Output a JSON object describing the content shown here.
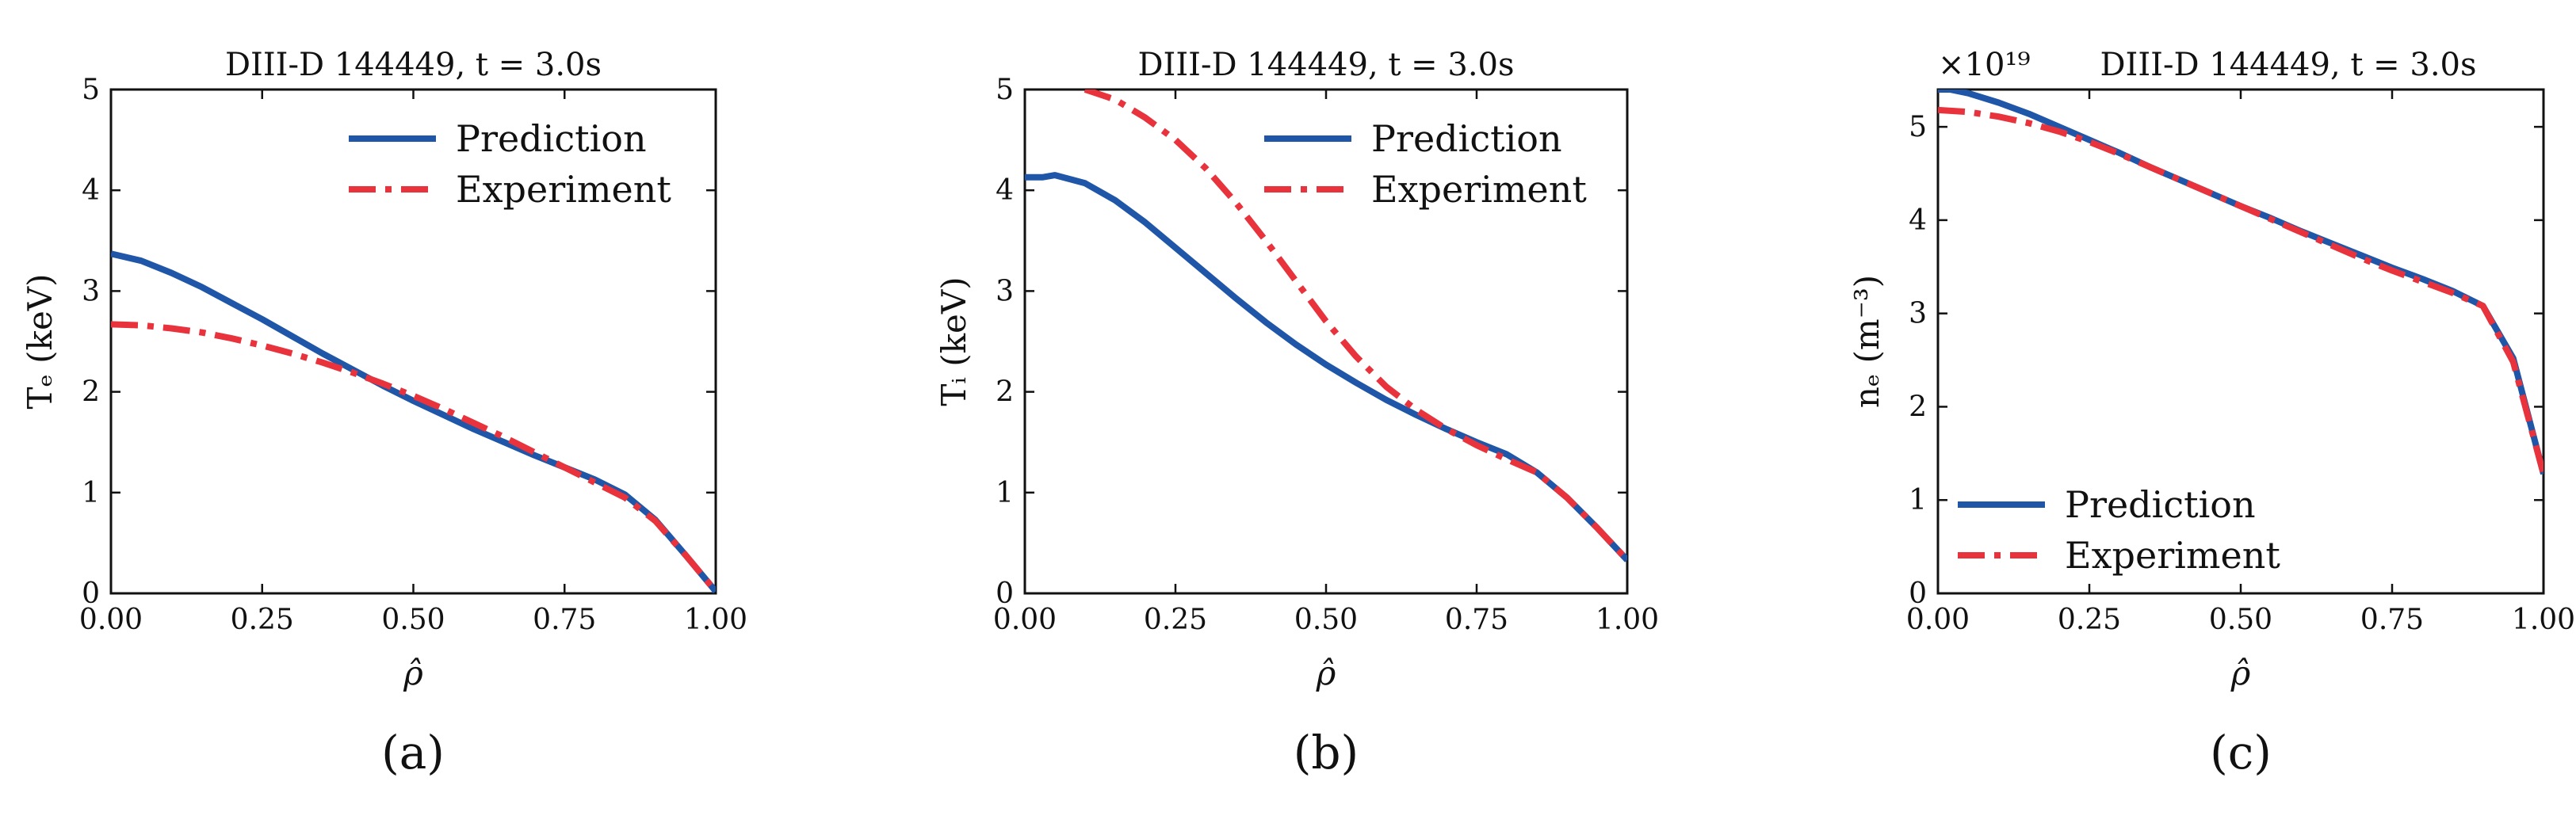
{
  "colors": {
    "prediction": "#1f56a8",
    "experiment": "#e8323c",
    "axis": "#111111"
  },
  "chart_data": [
    {
      "type": "line",
      "panel": "a",
      "caption": "(a)",
      "title": "DIII-D 144449, t = 3.0s",
      "xlabel": "ρ̂",
      "ylabel": "Tₑ (keV)",
      "multiplier_label": "",
      "xlim": [
        0,
        1
      ],
      "ylim": [
        0,
        5
      ],
      "x_ticks": [
        "0.00",
        "0.25",
        "0.50",
        "0.75",
        "1.00"
      ],
      "y_ticks": [
        "0",
        "1",
        "2",
        "3",
        "4",
        "5"
      ],
      "legend_position": "top-right",
      "series": [
        {
          "name": "Prediction",
          "style": "solid",
          "x": [
            0,
            0.05,
            0.1,
            0.15,
            0.2,
            0.25,
            0.3,
            0.35,
            0.4,
            0.45,
            0.5,
            0.55,
            0.6,
            0.65,
            0.7,
            0.75,
            0.8,
            0.85,
            0.9,
            0.95,
            1.0
          ],
          "y": [
            3.37,
            3.3,
            3.18,
            3.04,
            2.88,
            2.72,
            2.55,
            2.38,
            2.22,
            2.06,
            1.91,
            1.77,
            1.63,
            1.5,
            1.37,
            1.25,
            1.13,
            0.98,
            0.73,
            0.38,
            0.02
          ]
        },
        {
          "name": "Experiment",
          "style": "dashdot",
          "x": [
            0,
            0.05,
            0.1,
            0.15,
            0.2,
            0.25,
            0.3,
            0.35,
            0.4,
            0.45,
            0.5,
            0.55,
            0.6,
            0.65,
            0.7,
            0.75,
            0.8,
            0.85,
            0.9,
            0.95,
            1.0
          ],
          "y": [
            2.67,
            2.66,
            2.63,
            2.59,
            2.53,
            2.46,
            2.38,
            2.29,
            2.19,
            2.08,
            1.96,
            1.83,
            1.69,
            1.55,
            1.4,
            1.25,
            1.1,
            0.95,
            0.72,
            0.38,
            0.02
          ]
        }
      ]
    },
    {
      "type": "line",
      "panel": "b",
      "caption": "(b)",
      "title": "DIII-D 144449, t = 3.0s",
      "xlabel": "ρ̂",
      "ylabel": "Tᵢ (keV)",
      "multiplier_label": "",
      "xlim": [
        0,
        1
      ],
      "ylim": [
        0,
        5
      ],
      "x_ticks": [
        "0.00",
        "0.25",
        "0.50",
        "0.75",
        "1.00"
      ],
      "y_ticks": [
        "0",
        "1",
        "2",
        "3",
        "4",
        "5"
      ],
      "legend_position": "top-right",
      "series": [
        {
          "name": "Prediction",
          "style": "solid",
          "x": [
            0,
            0.03,
            0.05,
            0.1,
            0.15,
            0.2,
            0.25,
            0.3,
            0.35,
            0.4,
            0.45,
            0.5,
            0.55,
            0.6,
            0.65,
            0.7,
            0.75,
            0.8,
            0.85,
            0.9,
            0.95,
            1.0
          ],
          "y": [
            4.13,
            4.13,
            4.15,
            4.07,
            3.9,
            3.68,
            3.43,
            3.18,
            2.93,
            2.69,
            2.47,
            2.27,
            2.09,
            1.92,
            1.77,
            1.63,
            1.5,
            1.38,
            1.2,
            0.95,
            0.65,
            0.33
          ]
        },
        {
          "name": "Experiment",
          "style": "dashdot",
          "x": [
            0.1,
            0.15,
            0.2,
            0.25,
            0.3,
            0.35,
            0.4,
            0.45,
            0.5,
            0.55,
            0.6,
            0.65,
            0.7,
            0.75,
            0.8,
            0.85,
            0.9,
            0.95,
            1.0
          ],
          "y": [
            5.0,
            4.9,
            4.72,
            4.5,
            4.22,
            3.88,
            3.5,
            3.1,
            2.7,
            2.35,
            2.05,
            1.82,
            1.63,
            1.47,
            1.33,
            1.2,
            0.95,
            0.65,
            0.33
          ]
        }
      ]
    },
    {
      "type": "line",
      "panel": "c",
      "caption": "(c)",
      "title": "DIII-D 144449, t = 3.0s",
      "xlabel": "ρ̂",
      "ylabel": "nₑ (m⁻³)",
      "multiplier_label": "×10¹⁹",
      "xlim": [
        0,
        1
      ],
      "ylim": [
        0,
        5.4
      ],
      "x_ticks": [
        "0.00",
        "0.25",
        "0.50",
        "0.75",
        "1.00"
      ],
      "y_ticks": [
        "0",
        "1",
        "2",
        "3",
        "4",
        "5"
      ],
      "legend_position": "bottom-left",
      "series": [
        {
          "name": "Prediction",
          "style": "solid",
          "x": [
            0,
            0.02,
            0.05,
            0.1,
            0.15,
            0.2,
            0.25,
            0.3,
            0.35,
            0.4,
            0.45,
            0.5,
            0.55,
            0.6,
            0.65,
            0.7,
            0.75,
            0.8,
            0.85,
            0.9,
            0.95,
            1.0
          ],
          "y": [
            5.4,
            5.4,
            5.36,
            5.26,
            5.14,
            5.0,
            4.86,
            4.72,
            4.57,
            4.43,
            4.29,
            4.15,
            4.02,
            3.88,
            3.75,
            3.62,
            3.49,
            3.37,
            3.24,
            3.08,
            2.52,
            1.28
          ]
        },
        {
          "name": "Experiment",
          "style": "dashdot",
          "x": [
            0,
            0.05,
            0.1,
            0.15,
            0.2,
            0.25,
            0.3,
            0.35,
            0.4,
            0.45,
            0.5,
            0.55,
            0.6,
            0.65,
            0.7,
            0.75,
            0.8,
            0.85,
            0.9,
            0.95,
            1.0
          ],
          "y": [
            5.18,
            5.16,
            5.11,
            5.04,
            4.95,
            4.84,
            4.71,
            4.57,
            4.43,
            4.29,
            4.15,
            4.01,
            3.87,
            3.73,
            3.59,
            3.46,
            3.34,
            3.22,
            3.08,
            2.48,
            1.28
          ]
        }
      ]
    }
  ]
}
